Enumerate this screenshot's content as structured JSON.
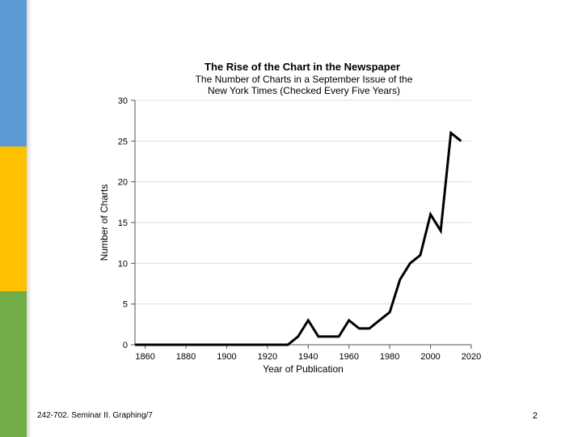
{
  "slide": {
    "footer_left": "242-702. Seminar II. Graphing/7",
    "page_number": "2",
    "stripe_colors": [
      "#5b9bd5",
      "#ffc000",
      "#70ad47"
    ]
  },
  "chart_data": {
    "type": "line",
    "title": "The Rise of the Chart in the Newspaper",
    "subtitle_lines": [
      "The Number of Charts in a September Issue of the",
      "New York Times (Checked Every Five Years)"
    ],
    "xlabel": "Year of Publication",
    "ylabel": "Number of Charts",
    "xlim": [
      1855,
      2020
    ],
    "ylim": [
      0,
      30
    ],
    "x_ticks": [
      1860,
      1880,
      1900,
      1920,
      1940,
      1960,
      1980,
      2000,
      2020
    ],
    "x_tick_labels": [
      "1860",
      "1880",
      "1900",
      "1920",
      "1940",
      "1960",
      "1980",
      "2000",
      "2020"
    ],
    "y_ticks": [
      0,
      5,
      10,
      15,
      20,
      25,
      30
    ],
    "y_tick_labels": [
      "0",
      "5",
      "10",
      "15",
      "20",
      "25",
      "30"
    ],
    "grid": true,
    "line_color": "#000000",
    "x": [
      1855,
      1860,
      1865,
      1870,
      1875,
      1880,
      1885,
      1890,
      1895,
      1900,
      1905,
      1910,
      1915,
      1920,
      1925,
      1930,
      1935,
      1940,
      1945,
      1950,
      1955,
      1960,
      1965,
      1970,
      1975,
      1980,
      1985,
      1990,
      1995,
      2000,
      2005,
      2010,
      2015
    ],
    "y": [
      0,
      0,
      0,
      0,
      0,
      0,
      0,
      0,
      0,
      0,
      0,
      0,
      0,
      0,
      0,
      0,
      1,
      3,
      1,
      1,
      1,
      3,
      2,
      2,
      3,
      4,
      8,
      10,
      11,
      16,
      14,
      26,
      25
    ]
  }
}
